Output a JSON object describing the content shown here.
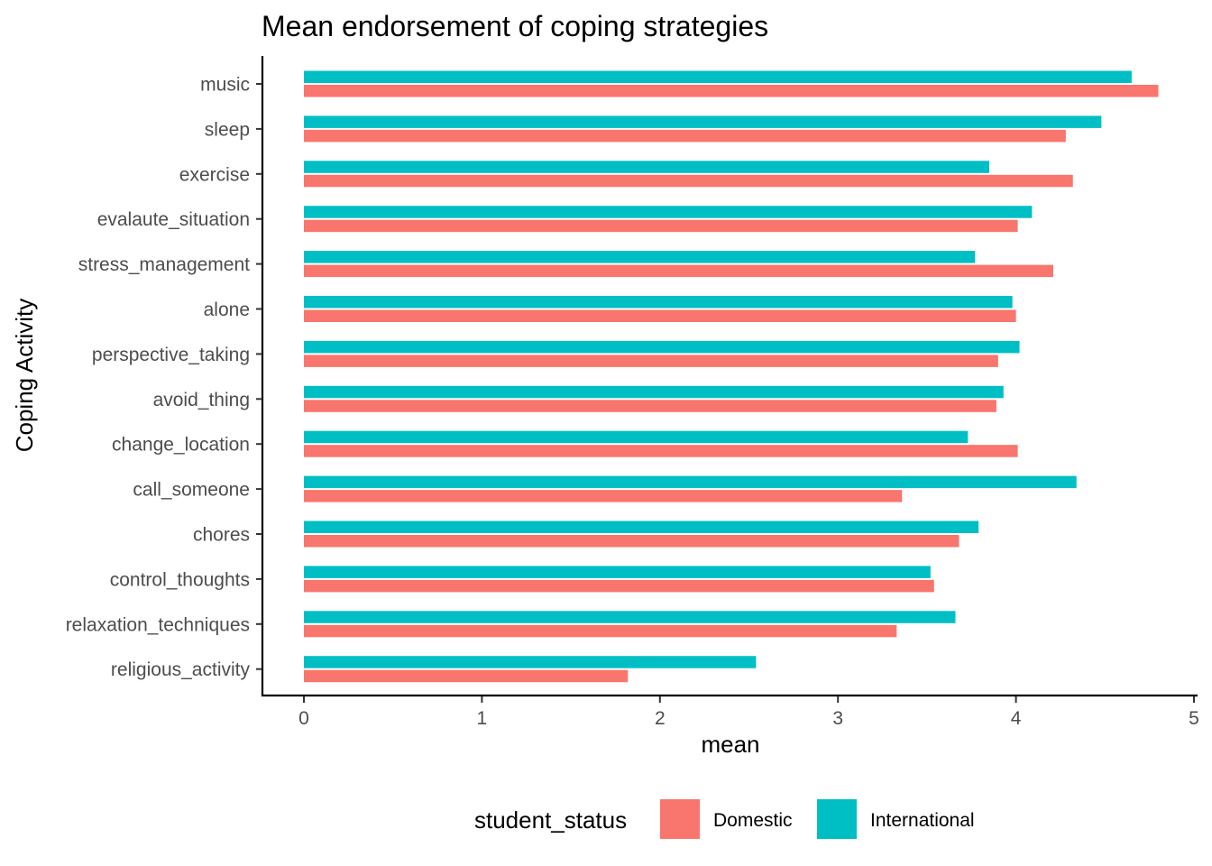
{
  "chart_data": {
    "type": "bar",
    "orientation": "horizontal",
    "title": "Mean endorsement of coping strategies",
    "xlabel": "mean",
    "ylabel": "Coping Activity",
    "xlim": [
      0,
      5
    ],
    "xticks": [
      "0",
      "1",
      "2",
      "3",
      "4",
      "5"
    ],
    "grid": false,
    "legend_position": "bottom",
    "legend_title": "student_status",
    "categories": [
      "music",
      "sleep",
      "exercise",
      "evalaute_situation",
      "stress_management",
      "alone",
      "perspective_taking",
      "avoid_thing",
      "change_location",
      "call_someone",
      "chores",
      "control_thoughts",
      "relaxation_techniques",
      "religious_activity"
    ],
    "series": [
      {
        "name": "Domestic",
        "color": "#F8766D",
        "values": [
          4.8,
          4.28,
          4.32,
          4.01,
          4.21,
          4.0,
          3.9,
          3.89,
          4.01,
          3.36,
          3.68,
          3.54,
          3.33,
          1.82
        ]
      },
      {
        "name": "International",
        "color": "#00BFC4",
        "values": [
          4.65,
          4.48,
          3.85,
          4.09,
          3.77,
          3.98,
          4.02,
          3.93,
          3.73,
          4.34,
          3.79,
          3.52,
          3.66,
          2.54
        ]
      }
    ]
  }
}
